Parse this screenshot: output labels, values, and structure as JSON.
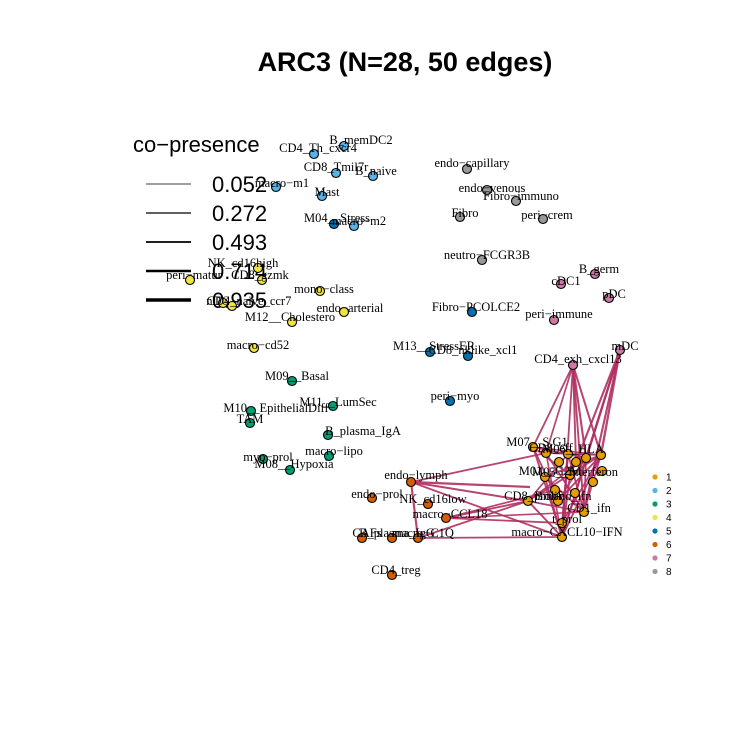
{
  "title": "ARC3 (N=28, 50 edges)",
  "edge_color": "#B03060",
  "legend": {
    "title": "co−presence",
    "values": [
      "0.052",
      "0.272",
      "0.493",
      "0.714",
      "0.935"
    ]
  },
  "clusters": [
    {
      "label": "1",
      "color": "#E69F00"
    },
    {
      "label": "2",
      "color": "#56B4E9"
    },
    {
      "label": "3",
      "color": "#009E73"
    },
    {
      "label": "4",
      "color": "#F0E442"
    },
    {
      "label": "5",
      "color": "#0072B2"
    },
    {
      "label": "6",
      "color": "#D55E00"
    },
    {
      "label": "7",
      "color": "#CC79A7"
    },
    {
      "label": "8",
      "color": "#999999"
    }
  ],
  "nodes": [
    {
      "id": "CD4_Th_cxcr4",
      "cluster": 2
    },
    {
      "id": "B_memDC2",
      "cluster": 2
    },
    {
      "id": "CD8_Tmil7r",
      "cluster": 2
    },
    {
      "id": "B_naive",
      "cluster": 2
    },
    {
      "id": "macro−m1",
      "cluster": 2
    },
    {
      "id": "Mast",
      "cluster": 2
    },
    {
      "id": "M04__Stress",
      "cluster": 5
    },
    {
      "id": "macro−m2",
      "cluster": 2
    },
    {
      "id": "NK_cd16high",
      "cluster": 4
    },
    {
      "id": "peri−matur",
      "cluster": 4
    },
    {
      "id": "CD8_gzmk",
      "cluster": 4
    },
    {
      "id": "mono−class",
      "cluster": 4
    },
    {
      "id": "CD4_naive_ccr7",
      "cluster": 4
    },
    {
      "id": "nDC",
      "cluster": 4
    },
    {
      "id": "endo−arterial",
      "cluster": 4
    },
    {
      "id": "M12__Cholestero",
      "cluster": 4
    },
    {
      "id": "macro−cd52",
      "cluster": 4
    },
    {
      "id": "endo−capillary",
      "cluster": 8
    },
    {
      "id": "endo−venous",
      "cluster": 8
    },
    {
      "id": "Fibro−immuno",
      "cluster": 8
    },
    {
      "id": "Fibro",
      "cluster": 8
    },
    {
      "id": "peri−crem",
      "cluster": 8
    },
    {
      "id": "neutro−FCGR3B",
      "cluster": 8
    },
    {
      "id": "B_germ",
      "cluster": 7
    },
    {
      "id": "cDC1",
      "cluster": 7
    },
    {
      "id": "pDC",
      "cluster": 7
    },
    {
      "id": "Fibro−PCOLCE2",
      "cluster": 5
    },
    {
      "id": "peri−immune",
      "cluster": 7
    },
    {
      "id": "mDC",
      "cluster": 7
    },
    {
      "id": "M13__StressER",
      "cluster": 5
    },
    {
      "id": "CD8_nklike_xcl1",
      "cluster": 5
    },
    {
      "id": "CD4_exh_cxcl13",
      "cluster": 7
    },
    {
      "id": "M09__Basal",
      "cluster": 3
    },
    {
      "id": "M11__LumSec",
      "cluster": 3
    },
    {
      "id": "M10__EpithelialDiff",
      "cluster": 3
    },
    {
      "id": "TAM",
      "cluster": 3
    },
    {
      "id": "peri−myo",
      "cluster": 5
    },
    {
      "id": "B_plasma_IgA",
      "cluster": 3
    },
    {
      "id": "myo−prol",
      "cluster": 3
    },
    {
      "id": "macro−lipo",
      "cluster": 3
    },
    {
      "id": "M08__Hypoxia",
      "cluster": 3
    },
    {
      "id": "M07__S.G1",
      "cluster": 1
    },
    {
      "id": "CD8_eff",
      "cluster": 1
    },
    {
      "id": "M06__HLA",
      "cluster": 1
    },
    {
      "id": "M01__G2M",
      "cluster": 1
    },
    {
      "id": "M05__Interferon",
      "cluster": 1
    },
    {
      "id": "endo−lymph",
      "cluster": 6
    },
    {
      "id": "endo−prol",
      "cluster": 6
    },
    {
      "id": "NK_cd16low",
      "cluster": 6
    },
    {
      "id": "CD8_prolif",
      "cluster": 1
    },
    {
      "id": "Bmono_ifn",
      "cluster": 1
    },
    {
      "id": "macro−CCL18",
      "cluster": 6
    },
    {
      "id": "CD1_ifn",
      "cluster": 1
    },
    {
      "id": "t_prol",
      "cluster": 1
    },
    {
      "id": "CAFs",
      "cluster": 6
    },
    {
      "id": "B_plasma_IgG",
      "cluster": 6
    },
    {
      "id": "macro−C1Q",
      "cluster": 6
    },
    {
      "id": "macro−CXCL10−IFN",
      "cluster": 1
    },
    {
      "id": "CD4_treg",
      "cluster": 6
    }
  ]
}
